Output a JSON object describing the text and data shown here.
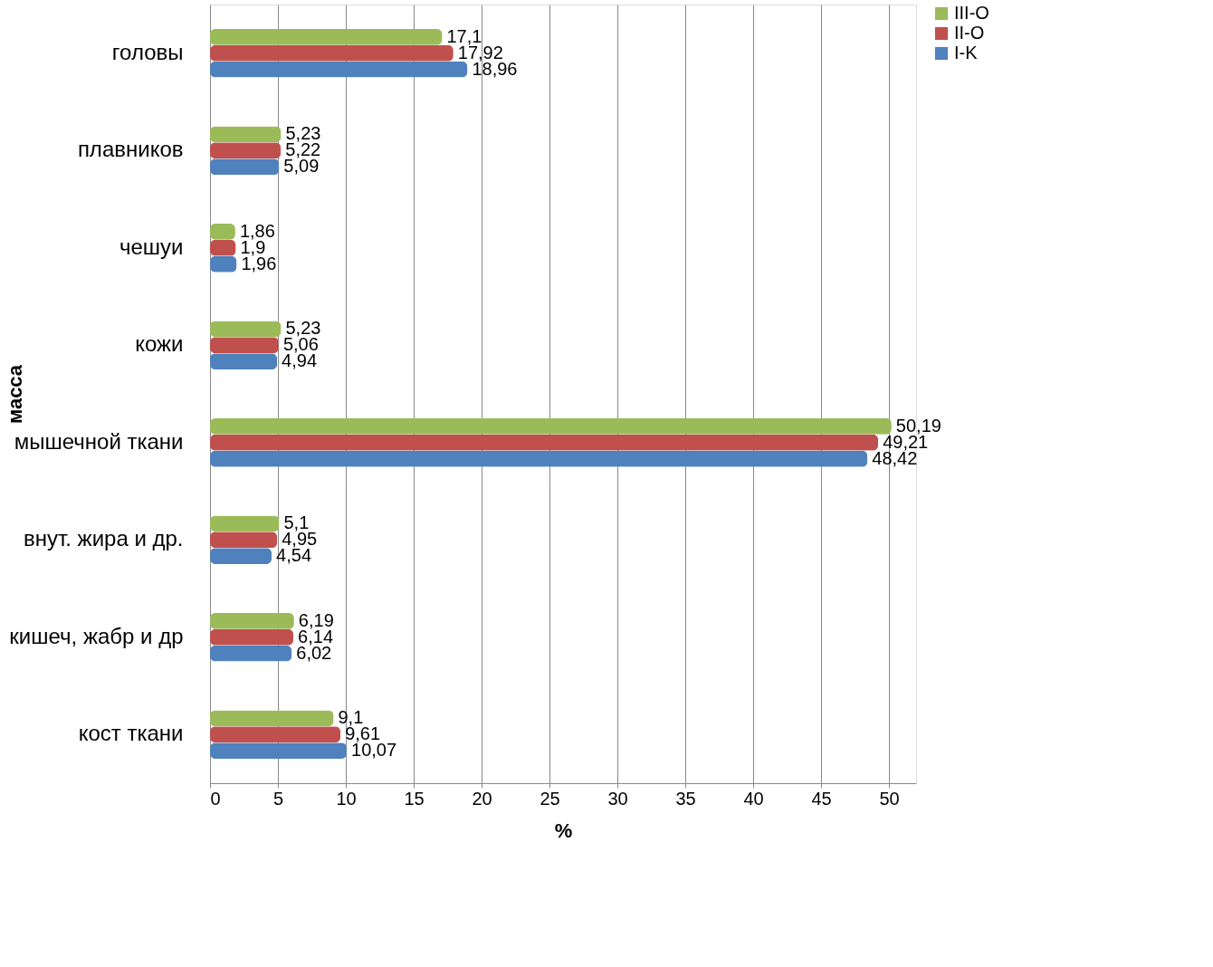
{
  "chart_data": {
    "type": "bar",
    "orientation": "horizontal",
    "xlabel": "%",
    "ylabel": "масса",
    "categories": [
      "головы",
      "плавников",
      "чешуи",
      "кожи",
      "мышечной ткани",
      "внут. жира и др.",
      "кишеч, жабр и др",
      "кост ткани"
    ],
    "series": [
      {
        "name": "III-O",
        "color": "#9bbb59",
        "values": [
          17.1,
          5.23,
          1.86,
          5.23,
          50.19,
          5.1,
          6.19,
          9.1
        ],
        "value_labels": [
          "17,1",
          "5,23",
          "1,86",
          "5,23",
          "50,19",
          "5,1",
          "6,19",
          "9,1"
        ]
      },
      {
        "name": "II-O",
        "color": "#c0504d",
        "values": [
          17.92,
          5.22,
          1.9,
          5.06,
          49.21,
          4.95,
          6.14,
          9.61
        ],
        "value_labels": [
          "17,92",
          "5,22",
          "1,9",
          "5,06",
          "49,21",
          "4,95",
          "6,14",
          "9,61"
        ]
      },
      {
        "name": "I-K",
        "color": "#4f81bd",
        "values": [
          18.96,
          5.09,
          1.96,
          4.94,
          48.42,
          4.54,
          6.02,
          10.07
        ],
        "value_labels": [
          "18,96",
          "5,09",
          "1,96",
          "4,94",
          "48,42",
          "4,54",
          "6,02",
          "10,07"
        ]
      }
    ],
    "xlim": [
      0,
      52
    ],
    "xticks": [
      0,
      5,
      10,
      15,
      20,
      25,
      30,
      35,
      40,
      45,
      50
    ],
    "grid": "x",
    "legend": "right"
  }
}
